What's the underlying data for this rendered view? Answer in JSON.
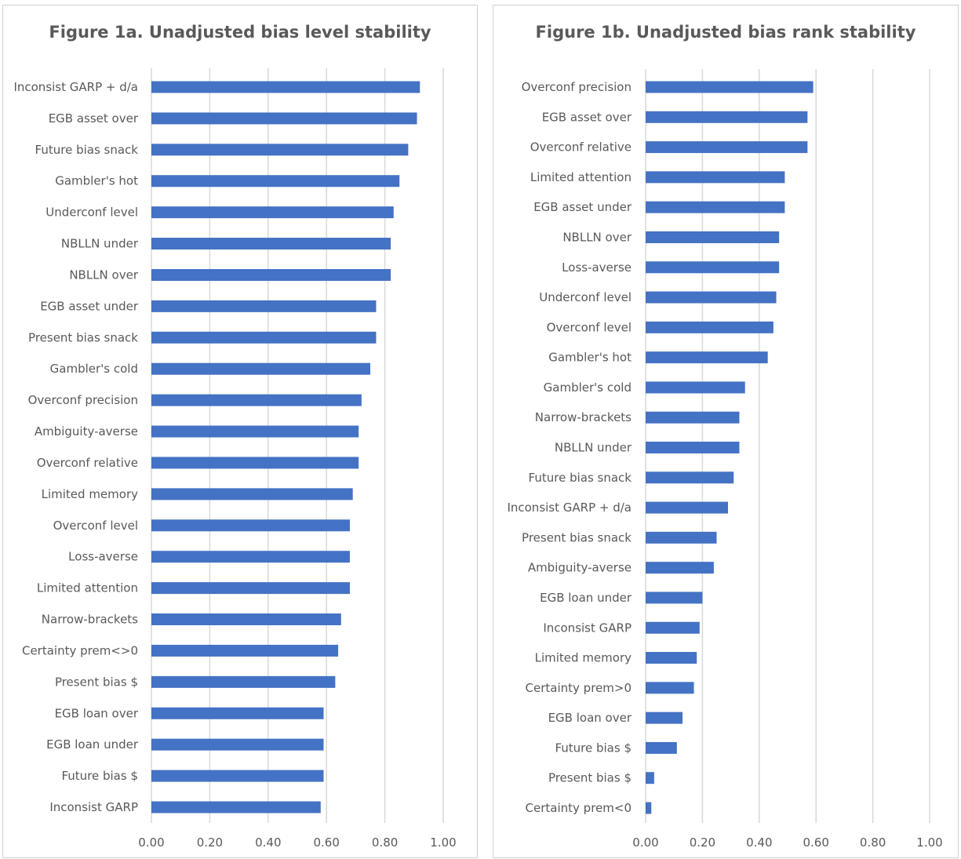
{
  "charts": [
    {
      "id": "1a",
      "chart_data": {
        "type": "bar",
        "orientation": "horizontal",
        "title": "Figure 1a. Unadjusted bias level stability",
        "xlim": [
          0,
          1
        ],
        "x_ticks": [
          "0.00",
          "0.20",
          "0.40",
          "0.60",
          "0.80",
          "1.00"
        ],
        "grid": "vertical",
        "bar_color": "#4472C4",
        "categories": [
          "Inconsist GARP + d/a",
          "EGB asset over",
          "Future bias snack",
          "Gambler's hot",
          "Underconf level",
          "NBLLN under",
          "NBLLN over",
          "EGB asset under",
          "Present bias snack",
          "Gambler's cold",
          "Overconf precision",
          "Ambiguity-averse",
          "Overconf relative",
          "Limited memory",
          "Overconf level",
          "Loss-averse",
          "Limited attention",
          "Narrow-brackets",
          "Certainty prem<>0",
          "Present bias $",
          "EGB loan over",
          "EGB loan under",
          "Future bias $",
          "Inconsist GARP"
        ],
        "values": [
          0.92,
          0.91,
          0.88,
          0.85,
          0.83,
          0.82,
          0.82,
          0.77,
          0.77,
          0.75,
          0.72,
          0.71,
          0.71,
          0.69,
          0.68,
          0.68,
          0.68,
          0.65,
          0.64,
          0.63,
          0.59,
          0.59,
          0.59,
          0.58
        ]
      }
    },
    {
      "id": "1b",
      "chart_data": {
        "type": "bar",
        "orientation": "horizontal",
        "title": "Figure 1b. Unadjusted bias rank stability",
        "xlim": [
          0,
          1
        ],
        "x_ticks": [
          "0.00",
          "0.20",
          "0.40",
          "0.60",
          "0.80",
          "1.00"
        ],
        "grid": "vertical",
        "bar_color": "#4472C4",
        "categories": [
          "Overconf precision",
          "EGB asset over",
          "Overconf relative",
          "Limited attention",
          "EGB asset under",
          "NBLLN over",
          "Loss-averse",
          "Underconf level",
          "Overconf level",
          "Gambler's hot",
          "Gambler's cold",
          "Narrow-brackets",
          "NBLLN under",
          "Future bias snack",
          "Inconsist GARP + d/a",
          "Present bias snack",
          "Ambiguity-averse",
          "EGB loan under",
          "Inconsist GARP",
          "Limited memory",
          "Certainty prem>0",
          "EGB loan over",
          "Future bias $",
          "Present bias $",
          "Certainty prem<0"
        ],
        "values": [
          0.59,
          0.57,
          0.57,
          0.49,
          0.49,
          0.47,
          0.47,
          0.46,
          0.45,
          0.43,
          0.35,
          0.33,
          0.33,
          0.31,
          0.29,
          0.25,
          0.24,
          0.2,
          0.19,
          0.18,
          0.17,
          0.13,
          0.11,
          0.03,
          0.02
        ]
      }
    }
  ]
}
